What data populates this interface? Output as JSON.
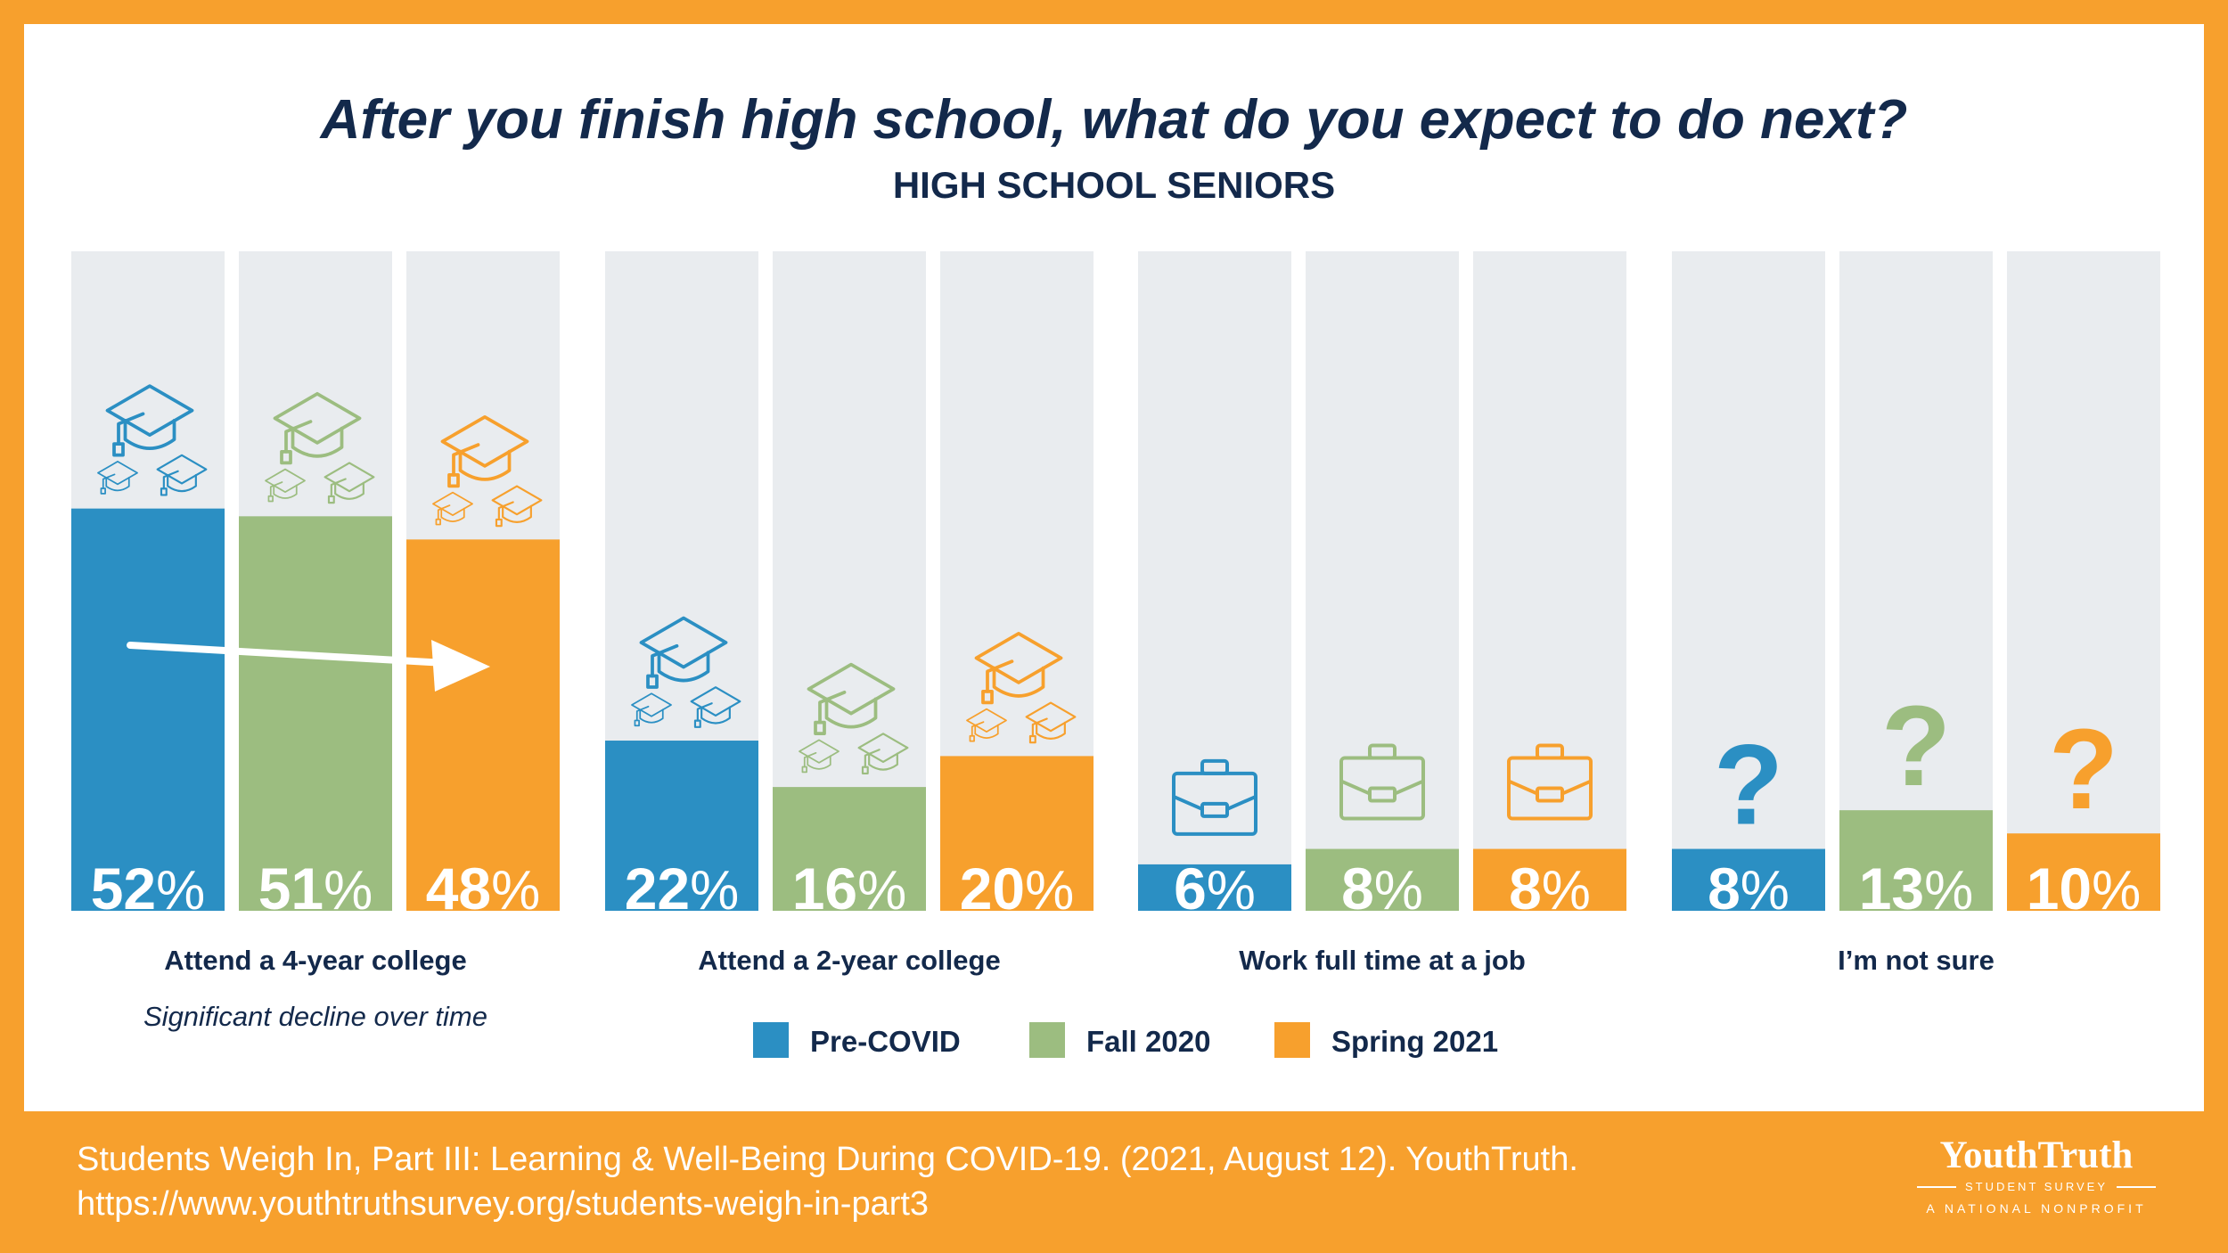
{
  "colors": {
    "pre_covid": "#2b8fc3",
    "fall_2020": "#9cbd80",
    "spring_2021": "#f7a02d",
    "track": "#e9ecef",
    "title": "#13294b",
    "frame": "#f7a02d"
  },
  "chart_data": {
    "type": "bar",
    "title": "After you finish high school, what do you expect to do next?",
    "subtitle": "HIGH SCHOOL SENIORS",
    "ylim": [
      0,
      100
    ],
    "categories": [
      "Attend a 4-year college",
      "Attend a 2-year college",
      "Work full time at a job",
      "I’m not sure"
    ],
    "category_icons": [
      "graduation-cap-icon",
      "graduation-cap-icon",
      "briefcase-icon",
      "question-mark-icon"
    ],
    "series": [
      {
        "name": "Pre-COVID",
        "values": [
          52,
          22,
          6,
          8
        ]
      },
      {
        "name": "Fall 2020",
        "values": [
          51,
          16,
          8,
          13
        ]
      },
      {
        "name": "Spring 2021",
        "values": [
          48,
          20,
          8,
          10
        ]
      }
    ],
    "annotation": "Significant decline over time",
    "legend_position": "bottom-center"
  },
  "footer": {
    "citation": "Students Weigh In, Part III: Learning & Well-Being During COVID-19. (2021, August 12). YouthTruth.",
    "url": "https://www.youthtruthsurvey.org/students-weigh-in-part3"
  },
  "logo": {
    "name": "YouthTruth",
    "subtitle": "STUDENT SURVEY",
    "tagline": "A NATIONAL NONPROFIT"
  }
}
